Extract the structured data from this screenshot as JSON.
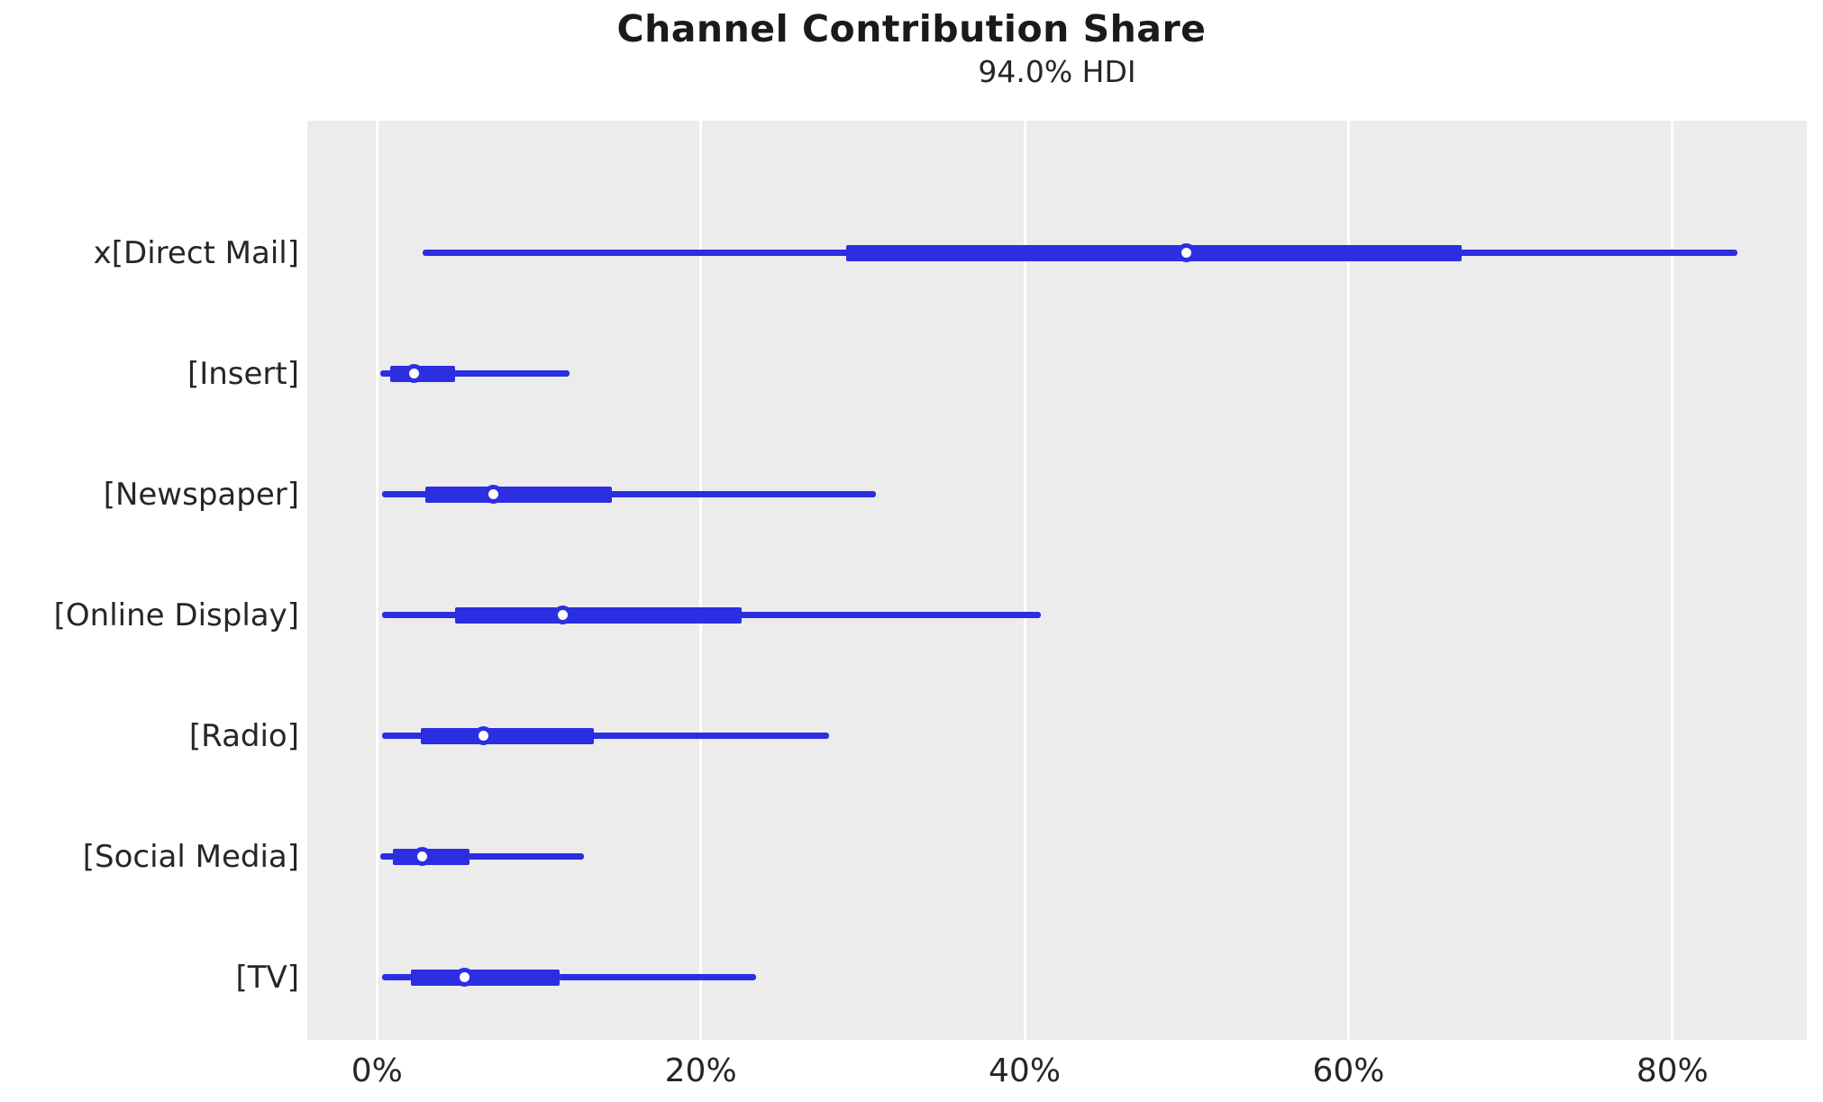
{
  "title": "Channel Contribution Share",
  "subtitle": "94.0% HDI",
  "colors": {
    "line": "#2b2ee1",
    "plot_background": "#ececec",
    "gridline": "#ffffff",
    "text": "#262626",
    "marker_fill": "#ffffff"
  },
  "chart_data": {
    "type": "forest",
    "title": "Channel Contribution Share",
    "subtitle": "94.0% HDI",
    "hdi_probability": 0.94,
    "xlabel": "",
    "ylabel": "",
    "x_tick_values": [
      0,
      20,
      40,
      60,
      80
    ],
    "x_tick_labels": [
      "0%",
      "20%",
      "40%",
      "60%",
      "80%"
    ],
    "xlim": [
      -4.3,
      88.3
    ],
    "grid": "vertical-white-on-gray",
    "legend": "none",
    "units": "percent",
    "rows": [
      {
        "label": "x[Direct Mail]",
        "hdi_lower": 2.8,
        "hdi_upper": 84.0,
        "quartile_lower": 29.0,
        "quartile_upper": 67.0,
        "median": 50.0
      },
      {
        "label": "[Insert]",
        "hdi_lower": 0.2,
        "hdi_upper": 11.9,
        "quartile_lower": 0.8,
        "quartile_upper": 4.8,
        "median": 2.3
      },
      {
        "label": "[Newspaper]",
        "hdi_lower": 0.3,
        "hdi_upper": 30.8,
        "quartile_lower": 3.0,
        "quartile_upper": 14.5,
        "median": 7.2
      },
      {
        "label": "[Online Display]",
        "hdi_lower": 0.3,
        "hdi_upper": 41.0,
        "quartile_lower": 4.8,
        "quartile_upper": 22.5,
        "median": 11.5
      },
      {
        "label": "[Radio]",
        "hdi_lower": 0.3,
        "hdi_upper": 27.9,
        "quartile_lower": 2.7,
        "quartile_upper": 13.4,
        "median": 6.6
      },
      {
        "label": "[Social Media]",
        "hdi_lower": 0.2,
        "hdi_upper": 12.8,
        "quartile_lower": 1.0,
        "quartile_upper": 5.7,
        "median": 2.8
      },
      {
        "label": "[TV]",
        "hdi_lower": 0.3,
        "hdi_upper": 23.4,
        "quartile_lower": 2.1,
        "quartile_upper": 11.3,
        "median": 5.4
      }
    ],
    "layout": {
      "first_row_fraction": 0.1441,
      "row_step_fraction": 0.13137
    }
  }
}
